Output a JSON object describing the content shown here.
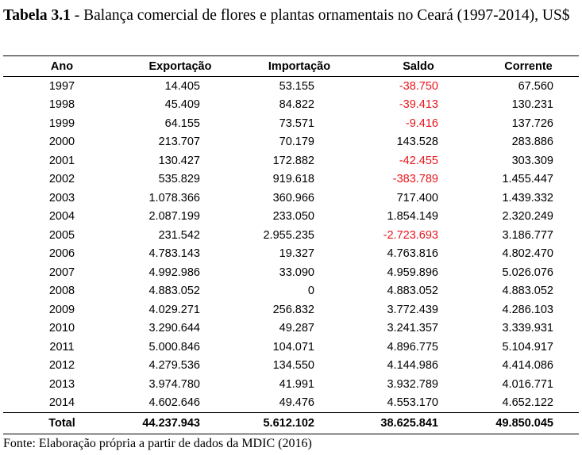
{
  "caption": {
    "label": "Tabela 3.1",
    "text": " - Balança comercial de flores e plantas ornamentais no Ceará (1997-2014), US$"
  },
  "table": {
    "headers": [
      "Ano",
      "Exportação",
      "Importação",
      "Saldo",
      "Corrente"
    ],
    "rows": [
      [
        "1997",
        "14.405",
        "53.155",
        "-38.750",
        "67.560"
      ],
      [
        "1998",
        "45.409",
        "84.822",
        "-39.413",
        "130.231"
      ],
      [
        "1999",
        "64.155",
        "73.571",
        "-9.416",
        "137.726"
      ],
      [
        "2000",
        "213.707",
        "70.179",
        "143.528",
        "283.886"
      ],
      [
        "2001",
        "130.427",
        "172.882",
        "-42.455",
        "303.309"
      ],
      [
        "2002",
        "535.829",
        "919.618",
        "-383.789",
        "1.455.447"
      ],
      [
        "2003",
        "1.078.366",
        "360.966",
        "717.400",
        "1.439.332"
      ],
      [
        "2004",
        "2.087.199",
        "233.050",
        "1.854.149",
        "2.320.249"
      ],
      [
        "2005",
        "231.542",
        "2.955.235",
        "-2.723.693",
        "3.186.777"
      ],
      [
        "2006",
        "4.783.143",
        "19.327",
        "4.763.816",
        "4.802.470"
      ],
      [
        "2007",
        "4.992.986",
        "33.090",
        "4.959.896",
        "5.026.076"
      ],
      [
        "2008",
        "4.883.052",
        "0",
        "4.883.052",
        "4.883.052"
      ],
      [
        "2009",
        "4.029.271",
        "256.832",
        "3.772.439",
        "4.286.103"
      ],
      [
        "2010",
        "3.290.644",
        "49.287",
        "3.241.357",
        "3.339.931"
      ],
      [
        "2011",
        "5.000.846",
        "104.071",
        "4.896.775",
        "5.104.917"
      ],
      [
        "2012",
        "4.279.536",
        "134.550",
        "4.144.986",
        "4.414.086"
      ],
      [
        "2013",
        "3.974.780",
        "41.991",
        "3.932.789",
        "4.016.771"
      ],
      [
        "2014",
        "4.602.646",
        "49.476",
        "4.553.170",
        "4.652.122"
      ]
    ],
    "total": [
      "Total",
      "44.237.943",
      "5.612.102",
      "38.625.841",
      "49.850.045"
    ]
  },
  "colors": {
    "negative": "#e8141b",
    "text": "#000000"
  },
  "source": "Fonte: Elaboração própria a partir de dados da MDIC (2016)"
}
